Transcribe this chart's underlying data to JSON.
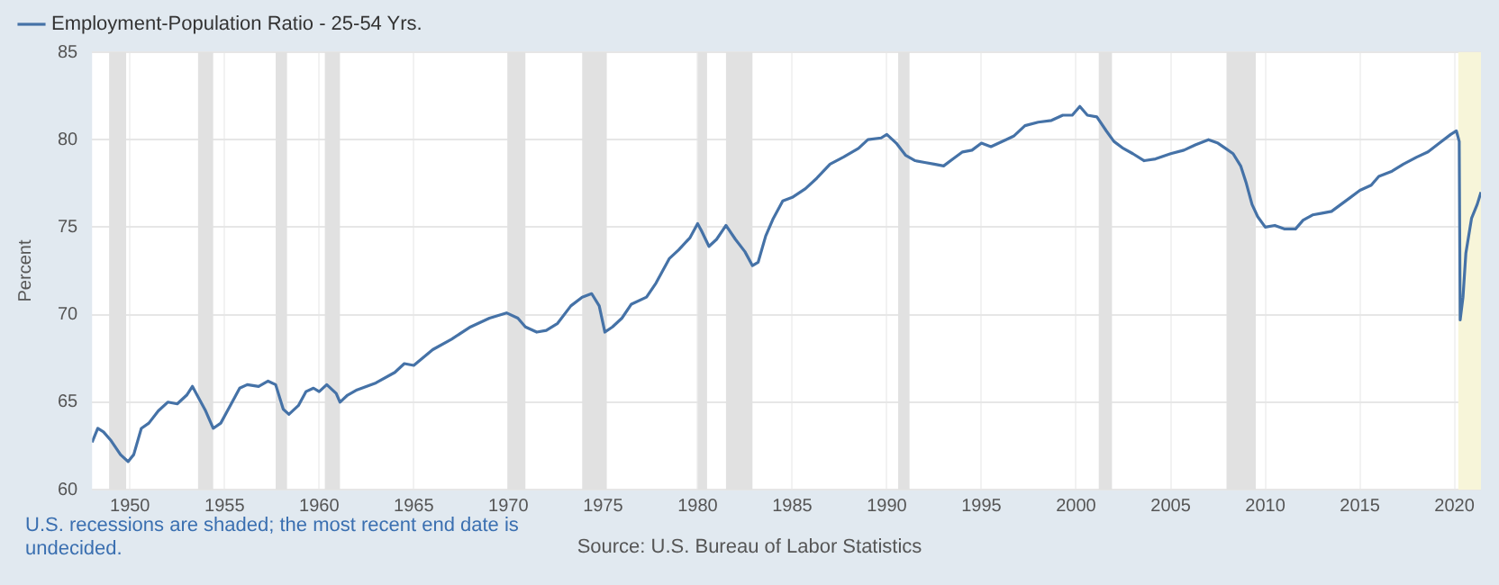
{
  "chart_data": {
    "type": "line",
    "ylabel": "Percent",
    "legend": "top left",
    "grid": true,
    "marker": "none",
    "line_style": "solid",
    "xlim": [
      1948,
      2021.4
    ],
    "xticks": [
      1950,
      1955,
      1960,
      1965,
      1970,
      1975,
      1980,
      1985,
      1990,
      1995,
      2000,
      2005,
      2010,
      2015,
      2020
    ],
    "ylim": [
      60,
      85
    ],
    "yticks": [
      60,
      65,
      70,
      75,
      80,
      85
    ],
    "bands": [
      {
        "axis": "x",
        "from": 1948.9,
        "to": 1949.8,
        "color": "#e1e1e1"
      },
      {
        "axis": "x",
        "from": 1953.6,
        "to": 1954.4,
        "color": "#e1e1e1"
      },
      {
        "axis": "x",
        "from": 1957.7,
        "to": 1958.3,
        "color": "#e1e1e1"
      },
      {
        "axis": "x",
        "from": 1960.3,
        "to": 1961.1,
        "color": "#e1e1e1"
      },
      {
        "axis": "x",
        "from": 1969.95,
        "to": 1970.9,
        "color": "#e1e1e1"
      },
      {
        "axis": "x",
        "from": 1973.9,
        "to": 1975.2,
        "color": "#e1e1e1"
      },
      {
        "axis": "x",
        "from": 1980.0,
        "to": 1980.5,
        "color": "#e1e1e1"
      },
      {
        "axis": "x",
        "from": 1981.5,
        "to": 1982.9,
        "color": "#e1e1e1"
      },
      {
        "axis": "x",
        "from": 1990.6,
        "to": 1991.2,
        "color": "#e1e1e1"
      },
      {
        "axis": "x",
        "from": 2001.2,
        "to": 2001.9,
        "color": "#e1e1e1"
      },
      {
        "axis": "x",
        "from": 2007.95,
        "to": 2009.5,
        "color": "#e1e1e1"
      },
      {
        "axis": "x",
        "from": 2020.2,
        "to": 2021.4,
        "color": "#f7f5d9"
      }
    ],
    "annotations": [
      "U.S. recessions are shaded; the most recent end date is undecided.",
      "Source: U.S. Bureau of Labor Statistics"
    ],
    "series": [
      {
        "name": "Employment-Population Ratio - 25-54 Yrs.",
        "color": "#4572a7",
        "x": [
          1948.0,
          1948.3,
          1948.6,
          1949.0,
          1949.5,
          1949.9,
          1950.2,
          1950.6,
          1951.0,
          1951.5,
          1952.0,
          1952.5,
          1953.0,
          1953.3,
          1953.6,
          1954.0,
          1954.4,
          1954.8,
          1955.3,
          1955.8,
          1956.2,
          1956.8,
          1957.3,
          1957.7,
          1958.1,
          1958.4,
          1958.9,
          1959.3,
          1959.7,
          1960.0,
          1960.4,
          1960.9,
          1961.1,
          1961.5,
          1962.0,
          1963.0,
          1964.0,
          1964.5,
          1965.0,
          1966.0,
          1967.0,
          1968.0,
          1969.0,
          1969.9,
          1970.5,
          1970.9,
          1971.5,
          1972.0,
          1972.6,
          1973.3,
          1973.9,
          1974.4,
          1974.8,
          1975.1,
          1975.5,
          1976.0,
          1976.5,
          1977.3,
          1977.8,
          1978.5,
          1979.0,
          1979.6,
          1980.0,
          1980.2,
          1980.6,
          1981.0,
          1981.5,
          1982.0,
          1982.5,
          1982.9,
          1983.2,
          1983.6,
          1984.0,
          1984.5,
          1985.0,
          1985.7,
          1986.3,
          1987.0,
          1987.7,
          1988.5,
          1989.0,
          1989.7,
          1990.0,
          1990.5,
          1991.0,
          1991.5,
          1992.0,
          1992.5,
          1993.0,
          1993.5,
          1994.0,
          1994.5,
          1995.0,
          1995.5,
          1996.3,
          1996.7,
          1997.3,
          1998.0,
          1998.7,
          1999.3,
          1999.8,
          2000.2,
          2000.6,
          2001.1,
          2001.6,
          2002.0,
          2002.5,
          2003.0,
          2003.6,
          2004.2,
          2005.0,
          2005.7,
          2006.3,
          2007.0,
          2007.5,
          2007.9,
          2008.3,
          2008.7,
          2009.0,
          2009.3,
          2009.6,
          2010.0,
          2010.5,
          2011.0,
          2011.6,
          2012.0,
          2012.5,
          2013.0,
          2013.5,
          2014.0,
          2014.5,
          2015.0,
          2015.6,
          2016.0,
          2016.7,
          2017.3,
          2018.0,
          2018.6,
          2019.2,
          2019.8,
          2020.1,
          2020.25,
          2020.3,
          2020.45,
          2020.6,
          2020.9,
          2021.2,
          2021.4
        ],
        "values": [
          62.7,
          63.5,
          63.3,
          62.8,
          62.0,
          61.6,
          62.0,
          63.5,
          63.8,
          64.5,
          65.0,
          64.9,
          65.4,
          65.9,
          65.3,
          64.5,
          63.5,
          63.8,
          64.8,
          65.8,
          66.0,
          65.9,
          66.2,
          66.0,
          64.6,
          64.3,
          64.8,
          65.6,
          65.8,
          65.6,
          66.0,
          65.5,
          65.0,
          65.4,
          65.7,
          66.1,
          66.7,
          67.2,
          67.1,
          68.0,
          68.6,
          69.3,
          69.8,
          70.1,
          69.8,
          69.3,
          69.0,
          69.1,
          69.5,
          70.5,
          71.0,
          71.2,
          70.5,
          69.0,
          69.3,
          69.8,
          70.6,
          71.0,
          71.8,
          73.2,
          73.7,
          74.4,
          75.2,
          74.8,
          73.9,
          74.3,
          75.1,
          74.3,
          73.6,
          72.8,
          73.0,
          74.5,
          75.5,
          76.5,
          76.7,
          77.2,
          77.8,
          78.6,
          79.0,
          79.5,
          80.0,
          80.1,
          80.3,
          79.8,
          79.1,
          78.8,
          78.7,
          78.6,
          78.5,
          78.9,
          79.3,
          79.4,
          79.8,
          79.6,
          80.0,
          80.2,
          80.8,
          81.0,
          81.1,
          81.4,
          81.4,
          81.9,
          81.4,
          81.3,
          80.5,
          79.9,
          79.5,
          79.2,
          78.8,
          78.9,
          79.2,
          79.4,
          79.7,
          80.0,
          79.8,
          79.5,
          79.2,
          78.5,
          77.5,
          76.3,
          75.6,
          75.0,
          75.1,
          74.9,
          74.9,
          75.4,
          75.7,
          75.8,
          75.9,
          76.3,
          76.7,
          77.1,
          77.4,
          77.9,
          78.2,
          78.6,
          79.0,
          79.3,
          79.8,
          80.3,
          80.5,
          79.9,
          69.7,
          71.0,
          73.5,
          75.5,
          76.3,
          77.0
        ]
      }
    ]
  }
}
